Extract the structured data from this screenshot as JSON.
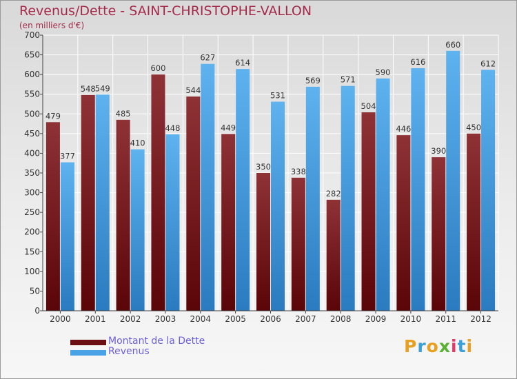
{
  "chart_data": {
    "type": "bar",
    "title": "Revenus/Dette - SAINT-CHRISTOPHE-VALLON",
    "subtitle": "(en milliers d'€)",
    "categories": [
      "2000",
      "2001",
      "2002",
      "2003",
      "2004",
      "2005",
      "2006",
      "2007",
      "2008",
      "2009",
      "2010",
      "2011",
      "2012"
    ],
    "series": [
      {
        "name": "Montant de la Dette",
        "color": "#7d1f25",
        "values": [
          479,
          548,
          485,
          600,
          544,
          449,
          350,
          338,
          282,
          504,
          446,
          390,
          450
        ]
      },
      {
        "name": "Revenus",
        "color": "#4aa3e6",
        "values": [
          377,
          549,
          410,
          448,
          627,
          614,
          531,
          569,
          571,
          590,
          616,
          660,
          612
        ]
      }
    ],
    "ylim": [
      0,
      700
    ],
    "yticks": [
      0,
      50,
      100,
      150,
      200,
      250,
      300,
      350,
      400,
      450,
      500,
      550,
      600,
      650,
      700
    ],
    "grid": true,
    "legend_placement": "bottom-left"
  },
  "logo": {
    "text": "Proxiti"
  }
}
